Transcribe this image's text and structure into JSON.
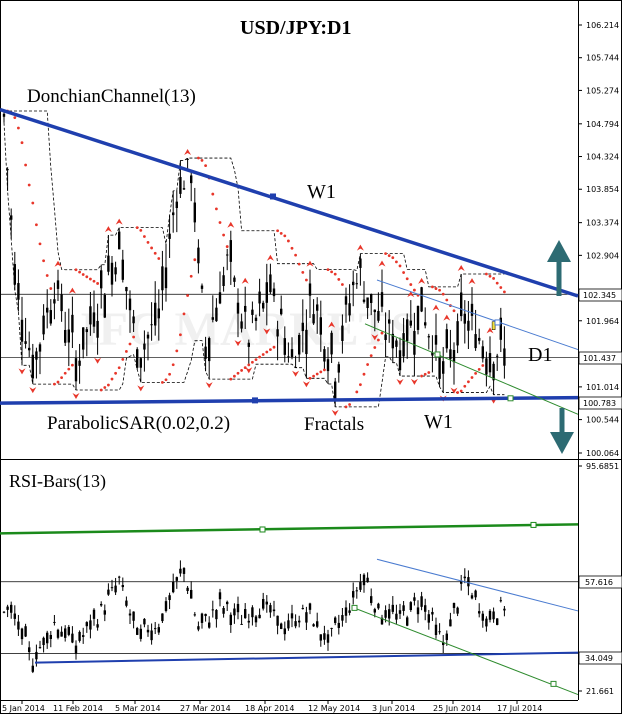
{
  "chart_data": [
    {
      "type": "candlestick",
      "title": "USD/JPY:D1",
      "timeframe_label": "D1",
      "indicators": {
        "donchian_label": "DonchianChannel(13)",
        "sar_label": "ParabolicSAR(0.02,0.2)",
        "fractals_label": "Fractals"
      },
      "trendline_labels": {
        "upper": "W1",
        "lower": "W1"
      },
      "y_ticks": [
        "106.214",
        "105.744",
        "105.274",
        "104.794",
        "104.324",
        "103.854",
        "103.374",
        "102.904",
        "101.964",
        "101.014",
        "100.544",
        "100.064"
      ],
      "price_labels": {
        "resistance": "102.345",
        "current": "101.437",
        "support": "100.783"
      },
      "ylim": [
        100.064,
        106.214
      ],
      "x_labels": [
        "5 Jan 2014",
        "11 Feb 2014",
        "5 Mar 2014",
        "27 Mar 2014",
        "18 Apr 2014",
        "12 May 2014",
        "3 Jun 2014",
        "25 Jun 2014",
        "17 Jul 2014"
      ],
      "colors": {
        "trendline": "#1f3fae",
        "arrow": "#2d6b73",
        "sar": "#e8362a",
        "channel": "#4a7bd0",
        "lower_channel": "#2e8b2e"
      }
    },
    {
      "type": "bar",
      "title": "RSI-Bars(13)",
      "y_ticks": [
        "95.6851",
        "21.661"
      ],
      "levels": {
        "upper": "57.616",
        "lower": "34.049"
      },
      "ylim": [
        21.661,
        95.6851
      ],
      "colors": {
        "support_line": "#1f3fae",
        "upper_line": "#1b8a1b",
        "channel": "#4a7bd0",
        "lower_channel": "#2e8b2e"
      }
    }
  ]
}
